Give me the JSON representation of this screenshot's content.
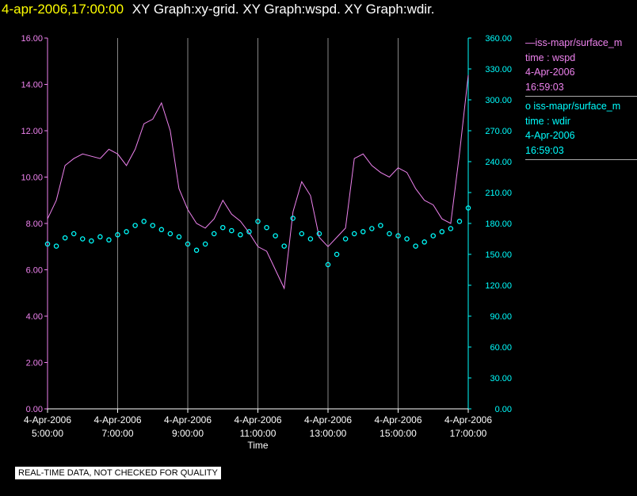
{
  "header": {
    "timestamp": "4-apr-2006,17:00:00",
    "title": "XY Graph:xy-grid.  XY Graph:wspd.  XY Graph:wdir."
  },
  "legend": {
    "wspd": {
      "name": "—iss-mapr/surface_m",
      "line2": "time : wspd",
      "line3": "4-Apr-2006",
      "line4": "16:59:03"
    },
    "wdir": {
      "name": "o iss-mapr/surface_m",
      "line2": "time : wdir",
      "line3": "4-Apr-2006",
      "line4": "16:59:03"
    }
  },
  "footer": {
    "note": "REAL-TIME DATA, NOT CHECKED FOR QUALITY"
  },
  "colors": {
    "wspd": "#ee82ee",
    "wdir": "#00ffff",
    "grid": "#888888",
    "axis": "#ffffff",
    "background": "#000000"
  },
  "chart_data": {
    "type": "line",
    "xlabel": "Time",
    "x_ticks": [
      {
        "date": "4-Apr-2006",
        "time": "5:00:00"
      },
      {
        "date": "4-Apr-2006",
        "time": "7:00:00"
      },
      {
        "date": "4-Apr-2006",
        "time": "9:00:00"
      },
      {
        "date": "4-Apr-2006",
        "time": "11:00:00"
      },
      {
        "date": "4-Apr-2006",
        "time": "13:00:00"
      },
      {
        "date": "4-Apr-2006",
        "time": "15:00:00"
      },
      {
        "date": "4-Apr-2006",
        "time": "17:00:00"
      }
    ],
    "xlim": [
      "05:00",
      "17:00"
    ],
    "left_axis": {
      "ticks": [
        "0.00",
        "2.00",
        "4.00",
        "6.00",
        "8.00",
        "10.00",
        "12.00",
        "14.00",
        "16.00"
      ],
      "ylim": [
        0,
        16
      ]
    },
    "right_axis": {
      "ticks": [
        "0.00",
        "30.00",
        "60.00",
        "90.00",
        "120.00",
        "150.00",
        "180.00",
        "210.00",
        "240.00",
        "270.00",
        "300.00",
        "330.00",
        "360.00"
      ],
      "ylim": [
        0,
        360
      ]
    },
    "grid": "vertical lines at each x tick",
    "series": [
      {
        "name": "iss-mapr/surface_m  time : wspd",
        "axis": "left",
        "style": "line",
        "x": [
          "05:00",
          "05:15",
          "05:30",
          "05:45",
          "06:00",
          "06:15",
          "06:30",
          "06:45",
          "07:00",
          "07:15",
          "07:30",
          "07:45",
          "08:00",
          "08:15",
          "08:30",
          "08:45",
          "09:00",
          "09:15",
          "09:30",
          "09:45",
          "10:00",
          "10:15",
          "10:30",
          "10:45",
          "11:00",
          "11:15",
          "11:30",
          "11:45",
          "12:00",
          "12:15",
          "12:30",
          "12:45",
          "13:00",
          "13:15",
          "13:30",
          "13:45",
          "14:00",
          "14:15",
          "14:30",
          "14:45",
          "15:00",
          "15:15",
          "15:30",
          "15:45",
          "16:00",
          "16:15",
          "16:30",
          "16:45",
          "17:00"
        ],
        "values": [
          8.2,
          9.0,
          10.5,
          10.8,
          11.0,
          10.9,
          10.8,
          11.2,
          11.0,
          10.5,
          11.2,
          12.3,
          12.5,
          13.2,
          12.0,
          9.5,
          8.6,
          8.0,
          7.8,
          8.2,
          9.0,
          8.4,
          8.1,
          7.6,
          7.0,
          6.8,
          6.0,
          5.2,
          8.5,
          9.8,
          9.2,
          7.4,
          7.0,
          7.4,
          7.8,
          10.8,
          11.0,
          10.5,
          10.2,
          10.0,
          10.4,
          10.2,
          9.5,
          9.0,
          8.8,
          8.2,
          8.0,
          11.0,
          14.4
        ]
      },
      {
        "name": "iss-mapr/surface_m  time : wdir",
        "axis": "right",
        "style": "markers",
        "x": [
          "05:00",
          "05:15",
          "05:30",
          "05:45",
          "06:00",
          "06:15",
          "06:30",
          "06:45",
          "07:00",
          "07:15",
          "07:30",
          "07:45",
          "08:00",
          "08:15",
          "08:30",
          "08:45",
          "09:00",
          "09:15",
          "09:30",
          "09:45",
          "10:00",
          "10:15",
          "10:30",
          "10:45",
          "11:00",
          "11:15",
          "11:30",
          "11:45",
          "12:00",
          "12:15",
          "12:30",
          "12:45",
          "13:00",
          "13:15",
          "13:30",
          "13:45",
          "14:00",
          "14:15",
          "14:30",
          "14:45",
          "15:00",
          "15:15",
          "15:30",
          "15:45",
          "16:00",
          "16:15",
          "16:30",
          "16:45",
          "17:00"
        ],
        "values": [
          160,
          158,
          166,
          170,
          165,
          163,
          167,
          164,
          169,
          172,
          178,
          182,
          178,
          174,
          170,
          167,
          160,
          154,
          160,
          170,
          176,
          173,
          169,
          172,
          182,
          176,
          168,
          158,
          185,
          170,
          165,
          170,
          140,
          150,
          165,
          170,
          172,
          175,
          178,
          170,
          168,
          165,
          158,
          162,
          168,
          172,
          175,
          182,
          195
        ]
      }
    ]
  }
}
